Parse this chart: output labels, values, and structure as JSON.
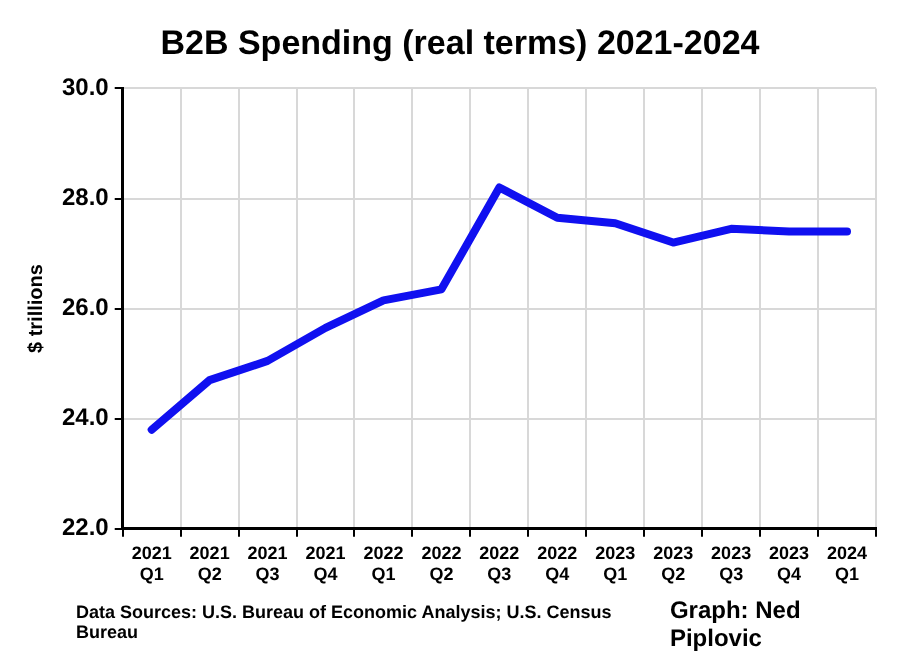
{
  "chart_data": {
    "type": "line",
    "title": "B2B Spending (real terms) 2021-2024",
    "ylabel": "$ trillions",
    "categories": [
      "2021\nQ1",
      "2021\nQ2",
      "2021\nQ3",
      "2021\nQ4",
      "2022\nQ1",
      "2022\nQ2",
      "2022\nQ3",
      "2022\nQ4",
      "2023\nQ1",
      "2023\nQ2",
      "2023\nQ3",
      "2023\nQ4",
      "2024\nQ1"
    ],
    "series": [
      {
        "color": "#1010f0",
        "values": [
          23.8,
          24.7,
          25.05,
          25.65,
          26.15,
          26.35,
          28.2,
          27.65,
          27.55,
          27.2,
          27.45,
          27.4,
          27.4
        ]
      }
    ],
    "ylim": [
      22,
      30
    ],
    "yticks": [
      {
        "value": 22,
        "label": "22.0"
      },
      {
        "value": 24,
        "label": "24.0"
      },
      {
        "value": 26,
        "label": "26.0"
      },
      {
        "value": 28,
        "label": "28.0"
      },
      {
        "value": 30,
        "label": "30.0"
      }
    ],
    "grid": true,
    "legend": false,
    "marker": "none",
    "line_style": "solid",
    "annotations": [
      "Data Sources: U.S. Bureau of Economic Analysis; U.S. Census Bureau",
      "Graph: Ned Piplovic"
    ]
  }
}
